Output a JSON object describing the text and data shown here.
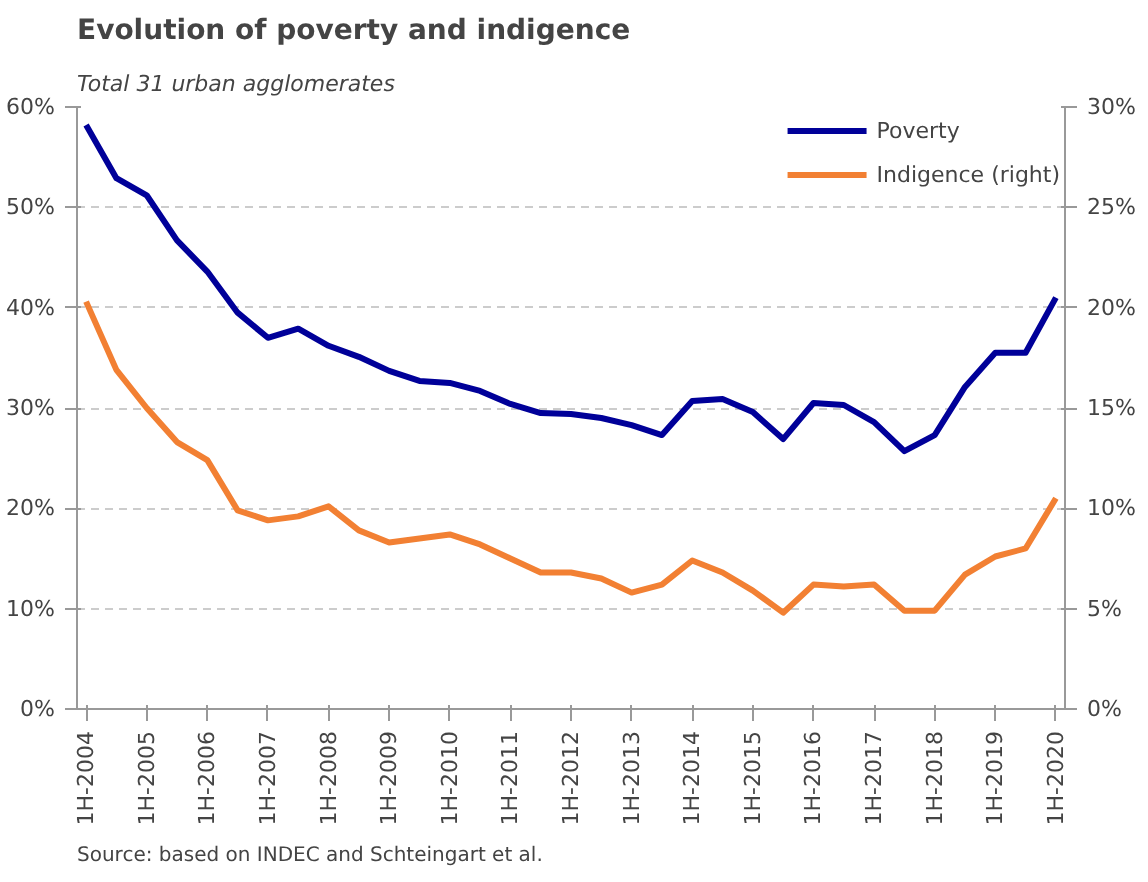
{
  "chart_data": {
    "type": "line",
    "title": "Evolution of poverty and indigence",
    "subtitle": "Total 31 urban agglomerates",
    "categories": [
      "1H-2004",
      null,
      "1H-2005",
      null,
      "1H-2006",
      null,
      "1H-2007",
      null,
      "1H-2008",
      null,
      "1H-2009",
      null,
      "1H-2010",
      null,
      "1H-2011",
      null,
      "1H-2012",
      null,
      "1H-2013",
      null,
      "1H-2014",
      null,
      "1H-2015",
      null,
      "1H-2016",
      null,
      "1H-2017",
      null,
      "1H-2018",
      null,
      "1H-2019",
      null,
      "1H-2020"
    ],
    "series": [
      {
        "name": "Poverty",
        "color": "#000099",
        "values": [
          58.2,
          52.9,
          51.2,
          46.7,
          43.6,
          39.5,
          37.0,
          37.9,
          36.2,
          35.1,
          33.7,
          32.7,
          32.5,
          31.7,
          30.4,
          29.5,
          29.4,
          29.0,
          28.3,
          27.3,
          30.7,
          30.9,
          29.6,
          26.9,
          30.5,
          30.3,
          28.6,
          25.7,
          27.3,
          32.1,
          35.5,
          35.5,
          41.0
        ]
      },
      {
        "name": "Indigence (right)",
        "color": "#f28033",
        "axis": "y2",
        "values": [
          20.3,
          16.9,
          15.0,
          13.3,
          12.4,
          9.9,
          9.4,
          9.6,
          10.1,
          8.9,
          8.3,
          8.5,
          8.7,
          8.2,
          7.5,
          6.8,
          6.8,
          6.5,
          5.8,
          6.2,
          7.4,
          6.8,
          5.9,
          4.8,
          6.2,
          6.1,
          6.2,
          4.9,
          4.9,
          6.7,
          7.6,
          8.0,
          10.5
        ]
      }
    ],
    "ylim": [
      0,
      60
    ],
    "yticks": [
      {
        "value": 0,
        "label": "0%"
      },
      {
        "value": 10,
        "label": "10%"
      },
      {
        "value": 20,
        "label": "20%"
      },
      {
        "value": 30,
        "label": "30%"
      },
      {
        "value": 40,
        "label": "40%"
      },
      {
        "value": 50,
        "label": "50%"
      },
      {
        "value": 60,
        "label": "60%"
      }
    ],
    "y2lim": [
      0,
      30
    ],
    "y2ticks": [
      {
        "value": 0,
        "label": "0%"
      },
      {
        "value": 5,
        "label": "5%"
      },
      {
        "value": 10,
        "label": "10%"
      },
      {
        "value": 15,
        "label": "15%"
      },
      {
        "value": 20,
        "label": "20%"
      },
      {
        "value": 25,
        "label": "25%"
      },
      {
        "value": 30,
        "label": "30%"
      }
    ],
    "grid": "y",
    "legend": "top right",
    "line_style": "solid",
    "annotations": [
      "Source: based on INDEC and Schteingart et al."
    ]
  }
}
